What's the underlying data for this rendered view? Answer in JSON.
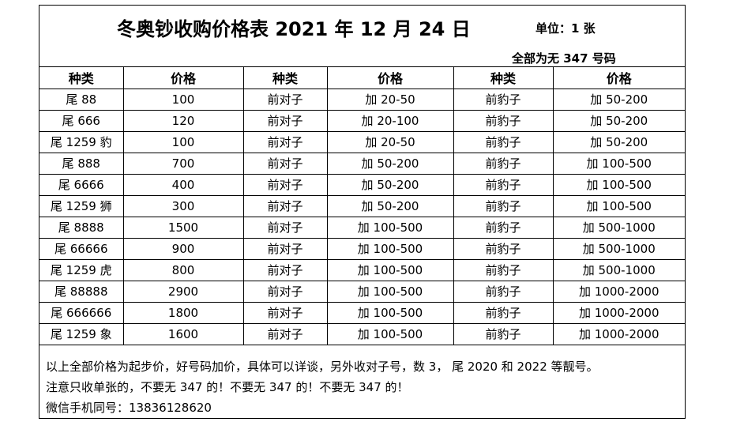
{
  "header": {
    "title": "冬奥钞收购价格表 2021 年 12 月 24 日",
    "unit": "单位：1 张",
    "note": "全部为无 347 号码"
  },
  "table": {
    "columns": [
      "种类",
      "价格",
      "种类",
      "价格",
      "种类",
      "价格"
    ],
    "rows": [
      [
        "尾 88",
        "100",
        "前对子",
        "加 20-50",
        "前豹子",
        "加 50-200"
      ],
      [
        "尾 666",
        "120",
        "前对子",
        "加 20-100",
        "前豹子",
        "加 50-200"
      ],
      [
        "尾 1259 豹",
        "100",
        "前对子",
        "加 20-50",
        "前豹子",
        "加 50-200"
      ],
      [
        "尾 888",
        "700",
        "前对子",
        "加 50-200",
        "前豹子",
        "加 100-500"
      ],
      [
        "尾 6666",
        "400",
        "前对子",
        "加 50-200",
        "前豹子",
        "加 100-500"
      ],
      [
        "尾 1259 狮",
        "300",
        "前对子",
        "加 50-200",
        "前豹子",
        "加 100-500"
      ],
      [
        "尾 8888",
        "1500",
        "前对子",
        "加 100-500",
        "前豹子",
        "加 500-1000"
      ],
      [
        "尾 66666",
        "900",
        "前对子",
        "加 100-500",
        "前豹子",
        "加 500-1000"
      ],
      [
        "尾 1259 虎",
        "800",
        "前对子",
        "加 100-500",
        "前豹子",
        "加 500-1000"
      ],
      [
        "尾 88888",
        "2900",
        "前对子",
        "加 100-500",
        "前豹子",
        "加 1000-2000"
      ],
      [
        "尾 666666",
        "1800",
        "前对子",
        "加 100-500",
        "前豹子",
        "加 1000-2000"
      ],
      [
        "尾 1259 象",
        "1600",
        "前对子",
        "加 100-500",
        "前豹子",
        "加 1000-2000"
      ]
    ]
  },
  "footer": {
    "line1": "以上全部价格为起步价，好号码加价，具体可以详谈，另外收对子号，数 3， 尾 2020 和 2022 等靓号。",
    "line2": "注意只收单张的，不要无 347 的！不要无 347 的！不要无 347 的！",
    "line3": "微信手机同号：13836128620"
  }
}
